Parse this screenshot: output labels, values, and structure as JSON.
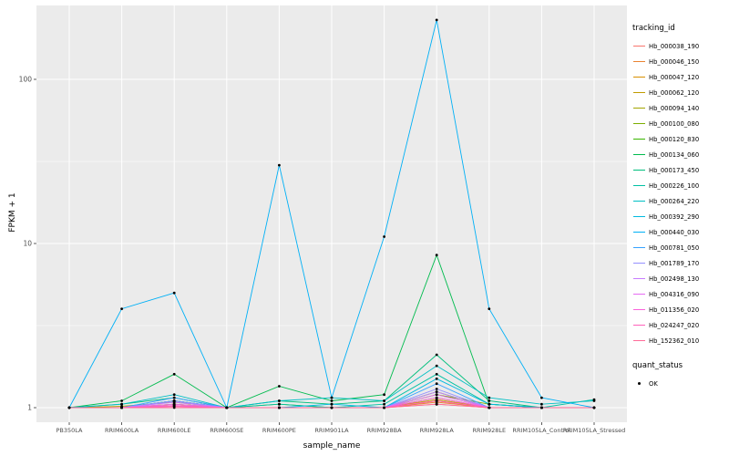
{
  "axes": {
    "x_label": "sample_name",
    "y_label": "FPKM + 1"
  },
  "legend": {
    "tracking_title": "tracking_id",
    "quant_title": "quant_status",
    "quant_entries": [
      "OK"
    ]
  },
  "chart_data": {
    "type": "line",
    "title": "",
    "xlabel": "sample_name",
    "ylabel": "FPKM + 1",
    "y_scale": "log10",
    "y_ticks": [
      1,
      10,
      100
    ],
    "y_minor_ticks": [
      3.1623,
      31.623
    ],
    "ylim_log_top_value": 280,
    "grid": true,
    "panel_bg": "#EBEBEB",
    "grid_color": "#FFFFFF",
    "point_color": "#000000",
    "legend_position": "right",
    "categories": [
      "PB350LA",
      "RRIM600LA",
      "RRIM600LE",
      "RRIM600SE",
      "RRIM600PE",
      "RRIM901LA",
      "RRIM928BA",
      "RRIM928LA",
      "RRIM928LE",
      "RRIM105LA_Control",
      "RRIM105LA_Stressed"
    ],
    "series": [
      {
        "name": "Hb_000038_190",
        "color": "#F8766D",
        "values": [
          1,
          1,
          1.02,
          1,
          1,
          1,
          1,
          1.05,
          1,
          1,
          1
        ]
      },
      {
        "name": "Hb_000046_150",
        "color": "#EA8331",
        "values": [
          1,
          1,
          1.03,
          1,
          1,
          1,
          1,
          1.08,
          1,
          1,
          1
        ]
      },
      {
        "name": "Hb_000047_120",
        "color": "#D89000",
        "values": [
          1,
          1,
          1.05,
          1,
          1,
          1,
          1,
          1.1,
          1,
          1,
          1
        ]
      },
      {
        "name": "Hb_000062_120",
        "color": "#C09B00",
        "values": [
          1,
          1,
          1.05,
          1,
          1,
          1,
          1,
          1.12,
          1,
          1,
          1
        ]
      },
      {
        "name": "Hb_000094_140",
        "color": "#A3A500",
        "values": [
          1,
          1.02,
          1.08,
          1,
          1,
          1,
          1,
          1.15,
          1,
          1,
          1
        ]
      },
      {
        "name": "Hb_000100_080",
        "color": "#7CAE00",
        "values": [
          1,
          1,
          1.1,
          1,
          1,
          1,
          1,
          1.2,
          1.05,
          1,
          1
        ]
      },
      {
        "name": "Hb_000120_830",
        "color": "#39B600",
        "values": [
          1,
          1,
          1.1,
          1,
          1.05,
          1,
          1,
          1.25,
          1,
          1,
          1
        ]
      },
      {
        "name": "Hb_000134_060",
        "color": "#00BB4E",
        "values": [
          1,
          1.1,
          1.6,
          1,
          1.35,
          1.1,
          1.2,
          8.5,
          1.05,
          1,
          1
        ]
      },
      {
        "name": "Hb_000173_450",
        "color": "#00BF7D",
        "values": [
          1,
          1.05,
          1.15,
          1,
          1.1,
          1.05,
          1.1,
          2.1,
          1.1,
          1,
          1
        ]
      },
      {
        "name": "Hb_000226_100",
        "color": "#00C1A3",
        "values": [
          1,
          1,
          1.1,
          1,
          1.05,
          1,
          1.05,
          1.6,
          1.05,
          1,
          1.12
        ]
      },
      {
        "name": "Hb_000264_220",
        "color": "#00BFC4",
        "values": [
          1,
          1.05,
          1.2,
          1,
          1.1,
          1.15,
          1.1,
          1.8,
          1.15,
          1.05,
          1.1
        ]
      },
      {
        "name": "Hb_000392_290",
        "color": "#00BAE0",
        "values": [
          1,
          1,
          1.1,
          1,
          1,
          1.05,
          1,
          1.5,
          1.05,
          1,
          1
        ]
      },
      {
        "name": "Hb_000440_030",
        "color": "#00B0F6",
        "values": [
          1,
          4,
          5,
          1,
          30,
          1.15,
          11,
          230,
          4,
          1.15,
          1
        ]
      },
      {
        "name": "Hb_000781_050",
        "color": "#35A2FF",
        "values": [
          1,
          1,
          1.15,
          1,
          1,
          1,
          1,
          1.4,
          1,
          1,
          1
        ]
      },
      {
        "name": "Hb_001789_170",
        "color": "#9590FF",
        "values": [
          1,
          1,
          1.1,
          1,
          1,
          1,
          1,
          1.3,
          1,
          1,
          1
        ]
      },
      {
        "name": "Hb_002498_130",
        "color": "#C77CFF",
        "values": [
          1,
          1,
          1.08,
          1,
          1,
          1,
          1,
          1.25,
          1,
          1,
          1
        ]
      },
      {
        "name": "Hb_004316_090",
        "color": "#E76BF3",
        "values": [
          1,
          1,
          1.05,
          1,
          1,
          1,
          1,
          1.2,
          1,
          1,
          1
        ]
      },
      {
        "name": "Hb_011356_020",
        "color": "#FA62DB",
        "values": [
          1,
          1,
          1.03,
          1,
          1,
          1,
          1,
          1.15,
          1,
          1,
          1
        ]
      },
      {
        "name": "Hb_024247_020",
        "color": "#FF62BC",
        "values": [
          1,
          1,
          1.02,
          1,
          1,
          1,
          1,
          1.1,
          1,
          1,
          1
        ]
      },
      {
        "name": "Hb_152362_010",
        "color": "#FF6A98",
        "values": [
          1,
          1,
          1,
          1,
          1,
          1,
          1,
          1.05,
          1,
          1,
          1
        ]
      }
    ],
    "quant_status": {
      "title": "quant_status",
      "entries": [
        "OK"
      ]
    }
  }
}
